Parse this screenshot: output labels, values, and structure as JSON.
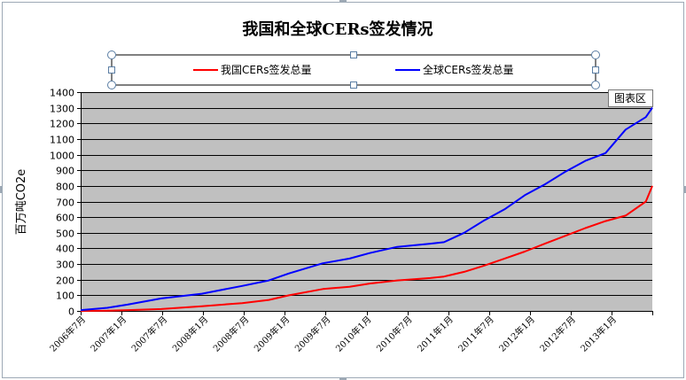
{
  "chart_data": {
    "type": "line",
    "title": "我国和全球CERs签发情况",
    "ylabel": "百万吨CO2e",
    "xlabel": "",
    "ylim": [
      0,
      1400
    ],
    "yticks": [
      0,
      100,
      200,
      300,
      400,
      500,
      600,
      700,
      800,
      900,
      1000,
      1100,
      1200,
      1300,
      1400
    ],
    "xtick_labels": [
      "2006年7月",
      "2007年1月",
      "2007年7月",
      "2008年1月",
      "2008年7月",
      "2009年1月",
      "2009年7月",
      "2010年1月",
      "2010年7月",
      "2011年1月",
      "2011年7月",
      "2012年1月",
      "2012年7月",
      "2013年1月"
    ],
    "x": [
      2006.5,
      2006.83,
      2007.08,
      2007.5,
      2008.0,
      2008.5,
      2008.83,
      2009.08,
      2009.5,
      2009.83,
      2010.08,
      2010.42,
      2010.83,
      2011.0,
      2011.25,
      2011.5,
      2011.75,
      2012.0,
      2012.25,
      2012.5,
      2012.75,
      2013.0,
      2013.25,
      2013.5,
      2013.58
    ],
    "x_range": [
      2006.5,
      2013.58
    ],
    "grid": true,
    "legend_position": "top",
    "series": [
      {
        "name": "我国CERs签发总量",
        "color": "#ff0000",
        "values": [
          0,
          1,
          5,
          12,
          30,
          50,
          70,
          100,
          140,
          155,
          175,
          195,
          210,
          220,
          250,
          290,
          335,
          380,
          430,
          480,
          530,
          575,
          610,
          700,
          800
        ]
      },
      {
        "name": "全球CERs签发总量",
        "color": "#0000ff",
        "values": [
          5,
          20,
          40,
          80,
          110,
          160,
          195,
          240,
          305,
          335,
          370,
          410,
          430,
          440,
          500,
          580,
          650,
          740,
          810,
          890,
          960,
          1010,
          1160,
          1240,
          1300
        ]
      }
    ],
    "plot_background": "#c0c0c0",
    "gridline_color": "#000000"
  },
  "ui": {
    "tooltip_label": "图表区"
  }
}
